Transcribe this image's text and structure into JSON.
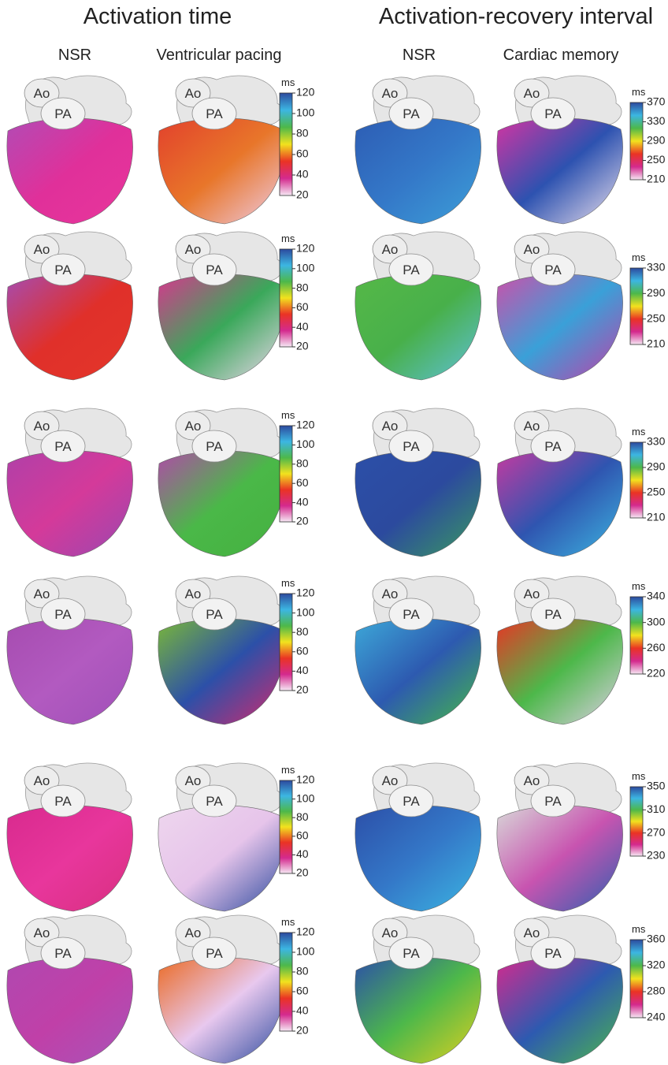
{
  "titles": [
    "Activation time",
    "Activation-recovery interval"
  ],
  "columns": [
    "NSR",
    "Ventricular pacing",
    "NSR",
    "Cardiac memory"
  ],
  "heart_labels": {
    "aorta": "Ao",
    "pulmonary_artery": "PA"
  },
  "colorbar_unit": "ms",
  "colormap": [
    "#2c4a9e",
    "#3cb6e2",
    "#4db84a",
    "#f2e21e",
    "#ea3324",
    "#d42a8e",
    "#f6e8f4"
  ],
  "rows": [
    {
      "activation_scale": {
        "lim": [
          20,
          120
        ],
        "ticks": [
          120,
          100,
          80,
          60,
          40,
          20
        ]
      },
      "ari_scale": {
        "lim": [
          210,
          370
        ],
        "ticks": [
          370,
          330,
          290,
          250,
          210
        ]
      }
    },
    {
      "activation_scale": {
        "lim": [
          20,
          120
        ],
        "ticks": [
          120,
          100,
          80,
          60,
          40,
          20
        ]
      },
      "ari_scale": {
        "lim": [
          210,
          330
        ],
        "ticks": [
          330,
          290,
          250,
          210
        ]
      }
    },
    {
      "activation_scale": {
        "lim": [
          20,
          120
        ],
        "ticks": [
          120,
          100,
          80,
          60,
          40,
          20
        ]
      },
      "ari_scale": {
        "lim": [
          210,
          330
        ],
        "ticks": [
          330,
          290,
          250,
          210
        ]
      }
    },
    {
      "activation_scale": {
        "lim": [
          20,
          120
        ],
        "ticks": [
          120,
          100,
          80,
          60,
          40,
          20
        ]
      },
      "ari_scale": {
        "lim": [
          220,
          340
        ],
        "ticks": [
          340,
          300,
          260,
          220
        ]
      }
    },
    {
      "activation_scale": {
        "lim": [
          20,
          120
        ],
        "ticks": [
          120,
          100,
          80,
          60,
          40,
          20
        ]
      },
      "ari_scale": {
        "lim": [
          230,
          350
        ],
        "ticks": [
          350,
          310,
          270,
          230
        ]
      }
    },
    {
      "activation_scale": {
        "lim": [
          20,
          120
        ],
        "ticks": [
          120,
          100,
          80,
          60,
          40,
          20
        ]
      },
      "ari_scale": {
        "lim": [
          240,
          360
        ],
        "ticks": [
          360,
          320,
          280,
          240
        ]
      }
    }
  ]
}
